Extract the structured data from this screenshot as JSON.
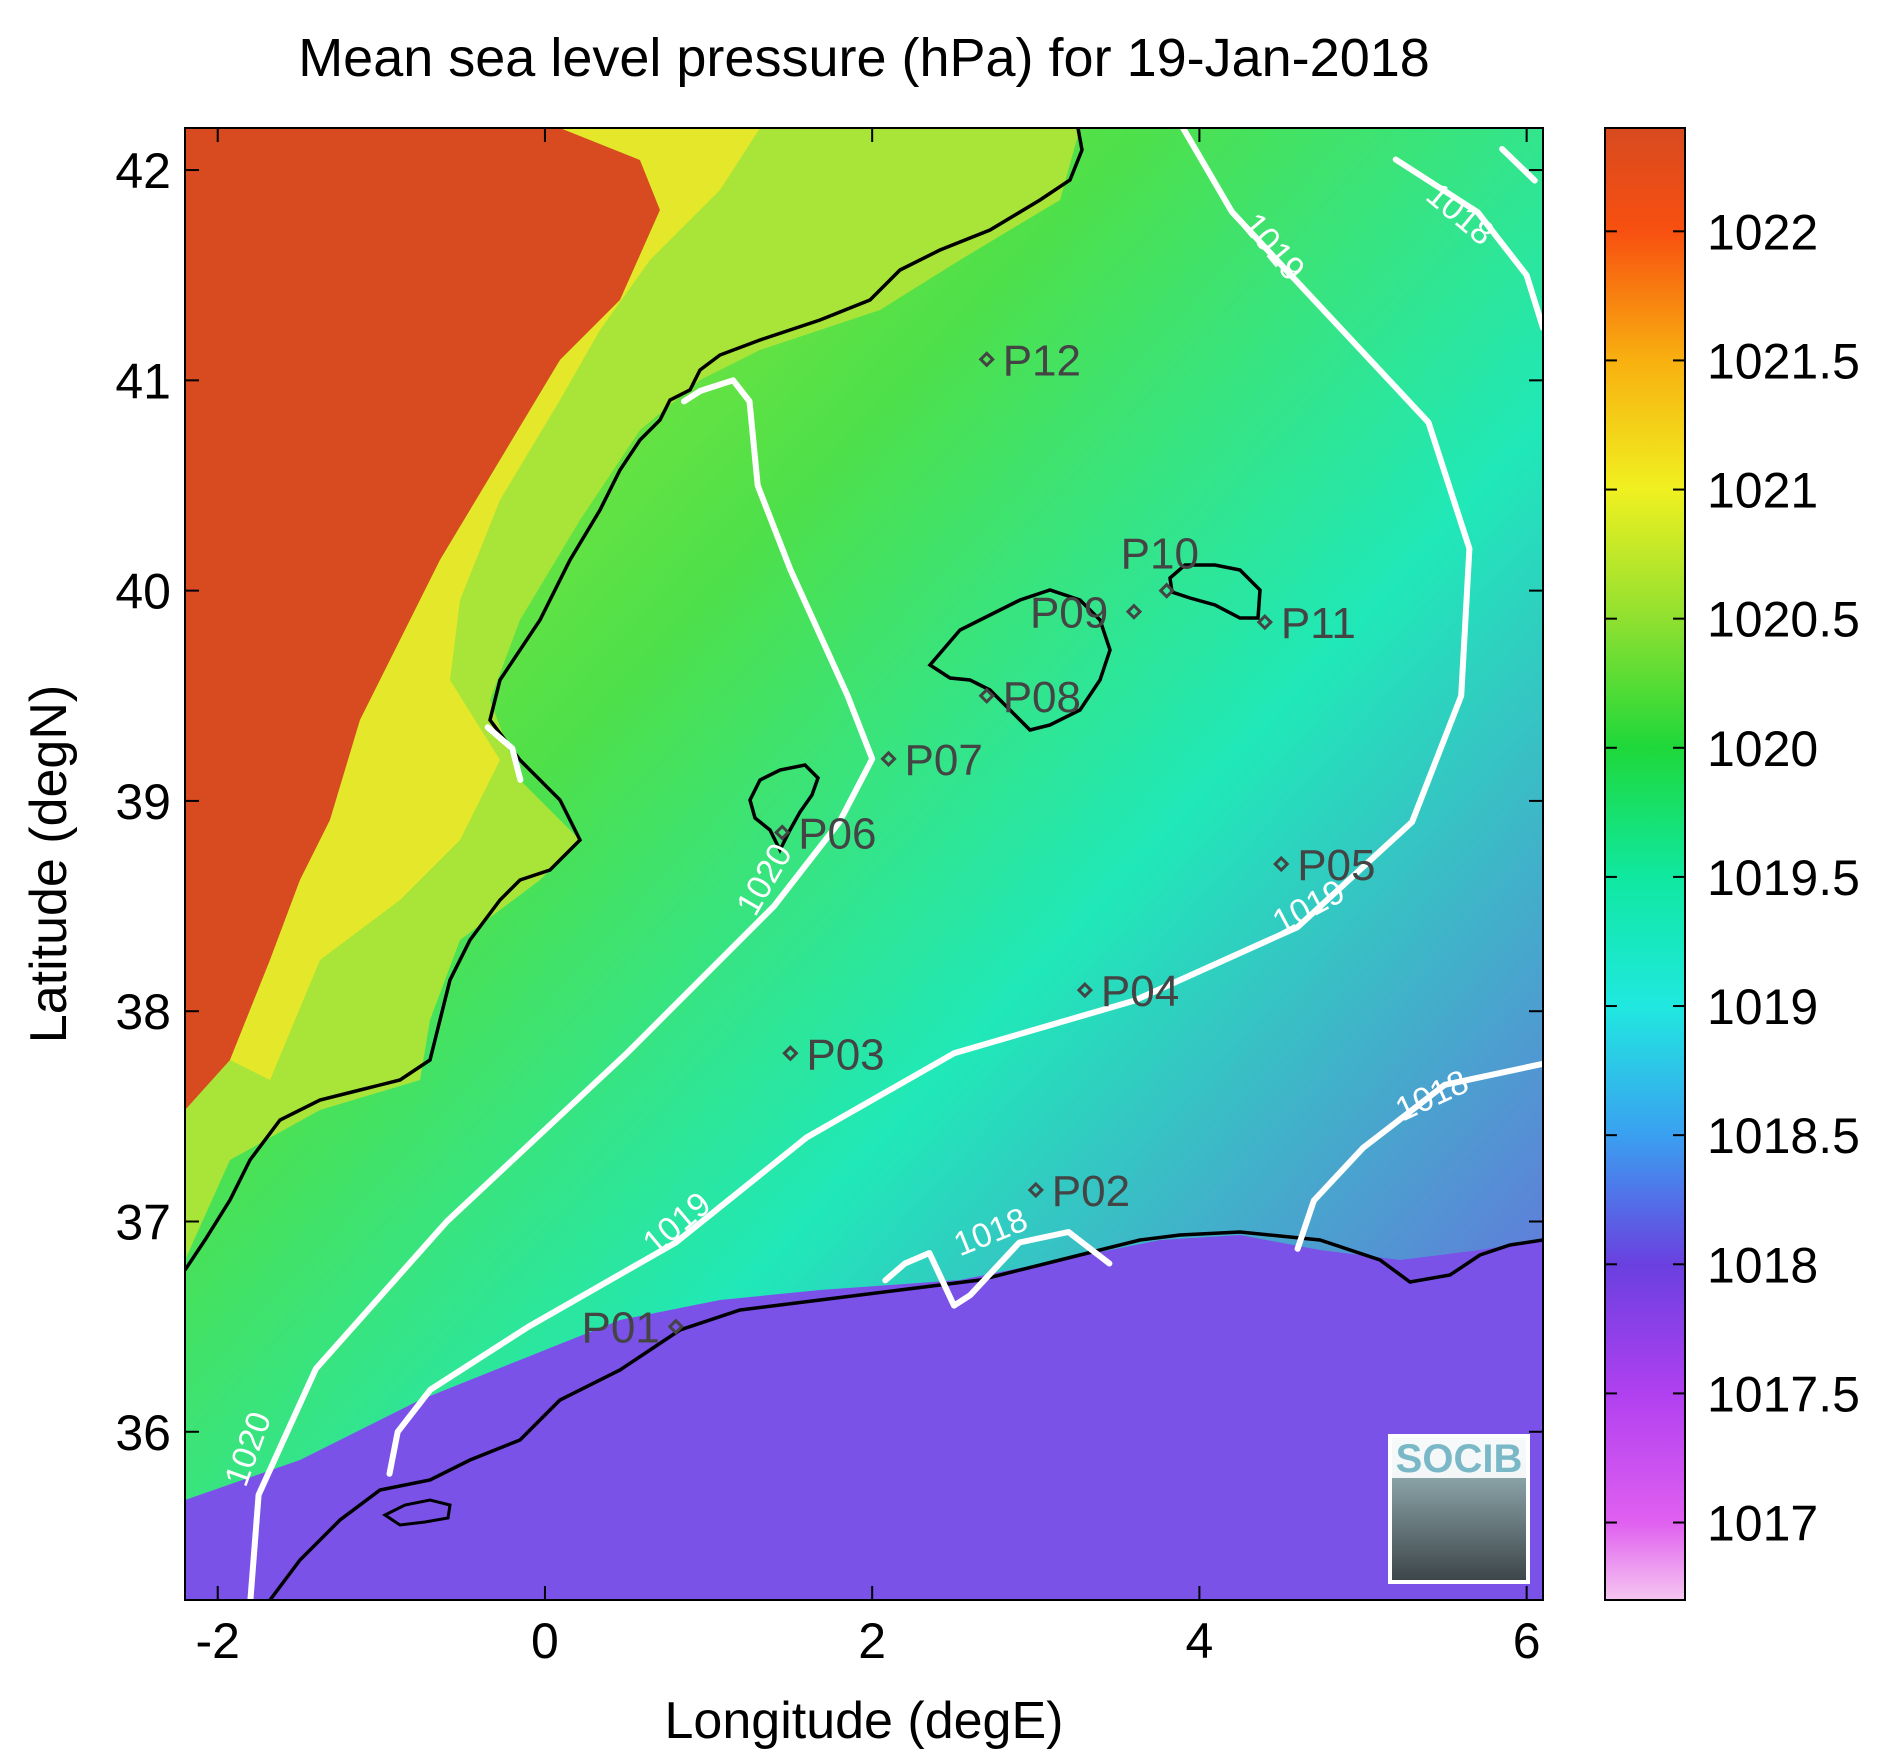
{
  "chart_data": {
    "type": "heatmap",
    "title": "Mean sea level pressure (hPa) for 19-Jan-2018",
    "xlabel": "Longitude (degE)",
    "ylabel": "Latitude (degN)",
    "xlim": [
      -2.2,
      6.1
    ],
    "ylim": [
      35.2,
      42.2
    ],
    "x_ticks": [
      -2,
      0,
      2,
      4,
      6
    ],
    "x_tick_labels": [
      "-2",
      "0",
      "2",
      "4",
      "6"
    ],
    "y_ticks": [
      36,
      37,
      38,
      39,
      40,
      41,
      42
    ],
    "y_tick_labels": [
      "36",
      "37",
      "38",
      "39",
      "40",
      "41",
      "42"
    ],
    "colorbar": {
      "range": [
        1016.7,
        1022.4
      ],
      "ticks": [
        1017,
        1017.5,
        1018,
        1018.5,
        1019,
        1019.5,
        1020,
        1020.5,
        1021,
        1021.5,
        1022
      ],
      "tick_labels": [
        "1017",
        "1017.5",
        "1018",
        "1018.5",
        "1019",
        "1019.5",
        "1020",
        "1020.5",
        "1021",
        "1021.5",
        "1022"
      ],
      "stops": [
        {
          "v": 1016.7,
          "color": "#f5c6f0"
        },
        {
          "v": 1017.0,
          "color": "#e060f0"
        },
        {
          "v": 1017.5,
          "color": "#b040f0"
        },
        {
          "v": 1018.0,
          "color": "#6a40e0"
        },
        {
          "v": 1018.5,
          "color": "#3aa0f0"
        },
        {
          "v": 1019.0,
          "color": "#20e8e0"
        },
        {
          "v": 1019.5,
          "color": "#10e8a0"
        },
        {
          "v": 1020.0,
          "color": "#1ed83a"
        },
        {
          "v": 1020.5,
          "color": "#90e030"
        },
        {
          "v": 1021.0,
          "color": "#f0f020"
        },
        {
          "v": 1021.5,
          "color": "#f8b010"
        },
        {
          "v": 1022.0,
          "color": "#f85010"
        },
        {
          "v": 1022.4,
          "color": "#d84a20"
        }
      ]
    },
    "contours": [
      {
        "level": 1020,
        "label": "1020",
        "points": [
          [
            -1.8,
            35.2
          ],
          [
            -1.75,
            35.7
          ],
          [
            -1.4,
            36.3
          ],
          [
            -0.6,
            37.0
          ],
          [
            0.5,
            37.8
          ],
          [
            1.4,
            38.5
          ],
          [
            1.8,
            38.9
          ],
          [
            2.0,
            39.2
          ],
          [
            1.85,
            39.5
          ],
          [
            1.5,
            40.1
          ],
          [
            1.3,
            40.5
          ],
          [
            1.25,
            40.9
          ],
          [
            1.15,
            41.0
          ],
          [
            0.95,
            40.95
          ],
          [
            0.85,
            40.9
          ]
        ]
      },
      {
        "level": 1020,
        "label": "",
        "points": [
          [
            -0.35,
            39.35
          ],
          [
            -0.2,
            39.25
          ],
          [
            -0.15,
            39.1
          ]
        ]
      },
      {
        "level": 1019,
        "label": "1019",
        "points": [
          [
            -0.95,
            35.8
          ],
          [
            -0.9,
            36.0
          ],
          [
            -0.7,
            36.2
          ],
          [
            -0.1,
            36.5
          ],
          [
            0.8,
            36.9
          ],
          [
            1.6,
            37.4
          ],
          [
            2.5,
            37.8
          ],
          [
            3.6,
            38.05
          ],
          [
            4.6,
            38.4
          ],
          [
            5.3,
            38.9
          ],
          [
            5.6,
            39.5
          ],
          [
            5.65,
            40.2
          ],
          [
            5.4,
            40.8
          ],
          [
            4.8,
            41.3
          ],
          [
            4.2,
            41.8
          ],
          [
            3.9,
            42.2
          ]
        ]
      },
      {
        "level": 1018,
        "label": "1018",
        "points": [
          [
            2.08,
            36.72
          ],
          [
            2.2,
            36.8
          ],
          [
            2.35,
            36.85
          ],
          [
            2.5,
            36.6
          ],
          [
            2.6,
            36.65
          ],
          [
            2.9,
            36.9
          ],
          [
            3.2,
            36.95
          ],
          [
            3.45,
            36.8
          ]
        ]
      },
      {
        "level": 1018,
        "label": "1018",
        "points": [
          [
            4.6,
            36.87
          ],
          [
            4.7,
            37.1
          ],
          [
            5.0,
            37.35
          ],
          [
            5.5,
            37.65
          ],
          [
            6.1,
            37.75
          ]
        ]
      },
      {
        "level": 1018,
        "label": "1018",
        "points": [
          [
            5.2,
            42.05
          ],
          [
            5.7,
            41.8
          ],
          [
            6.0,
            41.5
          ],
          [
            6.1,
            41.25
          ]
        ]
      },
      {
        "level": 1018,
        "label": "",
        "points": [
          [
            5.85,
            42.1
          ],
          [
            6.05,
            41.95
          ]
        ]
      }
    ],
    "contour_labels": [
      {
        "text": "1020",
        "x": -1.75,
        "y": 35.9,
        "angle": -70
      },
      {
        "text": "1020",
        "x": 1.4,
        "y": 38.6,
        "angle": -60
      },
      {
        "text": "1019",
        "x": 0.85,
        "y": 36.95,
        "angle": -40
      },
      {
        "text": "1019",
        "x": 4.7,
        "y": 38.45,
        "angle": -28
      },
      {
        "text": "1019",
        "x": 4.4,
        "y": 41.6,
        "angle": 50
      },
      {
        "text": "1018",
        "x": 2.75,
        "y": 36.9,
        "angle": -22
      },
      {
        "text": "1018",
        "x": 5.45,
        "y": 37.55,
        "angle": -25
      },
      {
        "text": "1018",
        "x": 5.55,
        "y": 41.75,
        "angle": 40
      }
    ],
    "points": [
      {
        "name": "P01",
        "lon": 0.8,
        "lat": 36.5
      },
      {
        "name": "P02",
        "lon": 3.0,
        "lat": 37.15
      },
      {
        "name": "P03",
        "lon": 1.5,
        "lat": 37.8
      },
      {
        "name": "P04",
        "lon": 3.3,
        "lat": 38.1
      },
      {
        "name": "P05",
        "lon": 4.5,
        "lat": 38.7
      },
      {
        "name": "P06",
        "lon": 1.45,
        "lat": 38.85
      },
      {
        "name": "P07",
        "lon": 2.1,
        "lat": 39.2
      },
      {
        "name": "P08",
        "lon": 2.7,
        "lat": 39.5
      },
      {
        "name": "P09",
        "lon": 3.6,
        "lat": 39.9
      },
      {
        "name": "P10",
        "lon": 3.8,
        "lat": 40.0
      },
      {
        "name": "P11",
        "lon": 4.4,
        "lat": 39.85
      },
      {
        "name": "P12",
        "lon": 2.7,
        "lat": 41.1
      }
    ],
    "logo_text": "SOCIB"
  }
}
